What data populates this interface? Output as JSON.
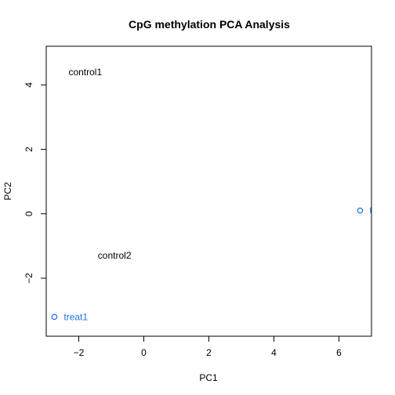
{
  "chart_data": {
    "type": "scatter",
    "title": "CpG methylation PCA Analysis",
    "xlabel": "PC1",
    "ylabel": "PC2",
    "xlim": [
      -3.0,
      7.0
    ],
    "ylim": [
      -3.8,
      5.2
    ],
    "xticks": [
      -2,
      0,
      2,
      4,
      6
    ],
    "yticks": [
      -2,
      0,
      2,
      4
    ],
    "xtick_labels": [
      "−2",
      "0",
      "2",
      "4",
      "6"
    ],
    "ytick_labels": [
      "−2",
      "0",
      "2",
      "4"
    ],
    "grid": false,
    "colors": {
      "control": "#000000",
      "treat": "#1a73e8",
      "axis": "#000000"
    },
    "points": [
      {
        "label": "control1",
        "x": -1.8,
        "y": 4.4,
        "group": "control",
        "marker": false
      },
      {
        "label": "control2",
        "x": -0.9,
        "y": -1.3,
        "group": "control",
        "marker": false
      },
      {
        "label": "treat1",
        "x": -2.75,
        "y": -3.2,
        "group": "treat",
        "marker": true
      },
      {
        "label": "t",
        "x": 6.65,
        "y": 0.1,
        "group": "treat",
        "marker": true
      }
    ]
  }
}
